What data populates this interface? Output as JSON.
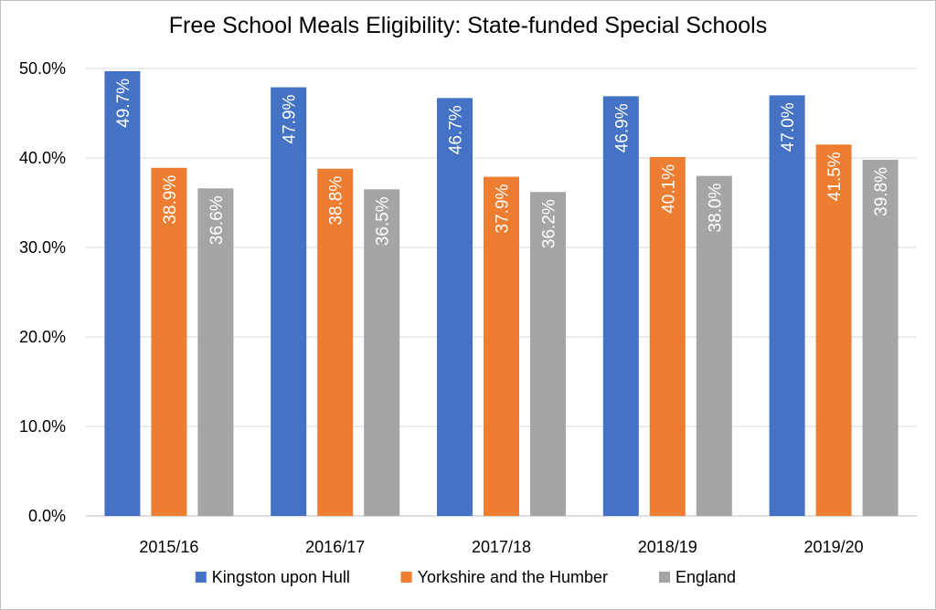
{
  "chart_data": {
    "type": "bar",
    "title": "Free School Meals Eligibility: State-funded Special Schools",
    "xlabel": "",
    "ylabel": "",
    "categories": [
      "2015/16",
      "2016/17",
      "2017/18",
      "2018/19",
      "2019/20"
    ],
    "series": [
      {
        "name": "Kingston upon Hull",
        "color": "#4472c4",
        "values": [
          49.7,
          47.9,
          46.7,
          46.9,
          47.0
        ]
      },
      {
        "name": "Yorkshire and the Humber",
        "color": "#ed7d31",
        "values": [
          38.9,
          38.8,
          37.9,
          40.1,
          41.5
        ]
      },
      {
        "name": "England",
        "color": "#a5a5a5",
        "values": [
          36.6,
          36.5,
          36.2,
          38.0,
          39.8
        ]
      }
    ],
    "ylim": [
      0,
      50
    ],
    "yticks": [
      "0.0%",
      "10.0%",
      "20.0%",
      "30.0%",
      "40.0%",
      "50.0%"
    ],
    "data_labels": true,
    "grid": true,
    "legend": "bottom"
  }
}
